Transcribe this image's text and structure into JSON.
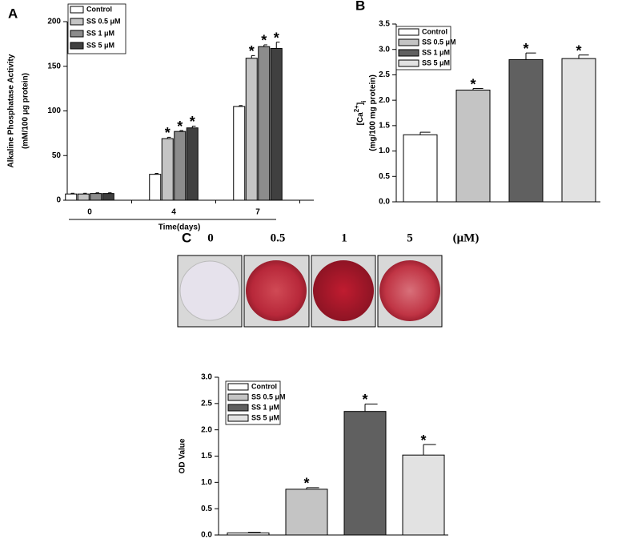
{
  "chart_data": [
    {
      "type": "grouped_bar",
      "panel_label": "A",
      "ylabel": [
        "Alkaline Phosphatase Activity",
        "(mM/100 μg protein)"
      ],
      "xlabel": "Time(days)",
      "categories": [
        "0",
        "4",
        "7"
      ],
      "series": [
        {
          "name": "Control",
          "color": "#ffffff",
          "values": [
            7,
            29,
            105
          ],
          "errors": [
            0.8,
            1,
            1
          ],
          "sig_labels": [
            null,
            null,
            null
          ]
        },
        {
          "name": "SS 0.5 μM",
          "color": "#c4c4c4",
          "values": [
            7,
            69,
            159
          ],
          "errors": [
            0.8,
            1.5,
            3
          ],
          "sig_labels": [
            null,
            "*",
            "*"
          ]
        },
        {
          "name": "SS 1 μM",
          "color": "#8c8c8c",
          "values": [
            7.5,
            77,
            172
          ],
          "errors": [
            0.8,
            1,
            2
          ],
          "sig_labels": [
            null,
            "*",
            "*"
          ]
        },
        {
          "name": "SS 5 μM",
          "color": "#404040",
          "values": [
            7.5,
            81,
            170
          ],
          "errors": [
            0.8,
            2,
            7
          ],
          "sig_labels": [
            null,
            "*",
            "*"
          ]
        }
      ],
      "ylim": [
        0,
        200
      ],
      "yticks": [
        0,
        50,
        100,
        150,
        200
      ]
    },
    {
      "type": "bar",
      "panel_label": "B",
      "ylabel": [
        "[Ca",
        "2+",
        "]",
        "i"
      ],
      "ylabel2": "(mg/100 mg protein)",
      "legend": [
        "Control",
        "SS 0.5 μM",
        "SS 1 μM",
        "SS 5 μM"
      ],
      "colors": [
        "#ffffff",
        "#c4c4c4",
        "#606060",
        "#e2e2e2"
      ],
      "values": [
        1.32,
        2.2,
        2.8,
        2.82
      ],
      "errors": [
        0.05,
        0.03,
        0.13,
        0.07
      ],
      "sig_labels": [
        null,
        "*",
        "*",
        "*"
      ],
      "ylim": [
        0,
        3.5
      ],
      "yticks": [
        {
          "value": 0,
          "label": "0.0"
        },
        {
          "value": 0.5,
          "label": "0.5"
        },
        {
          "value": 1,
          "label": "1.0"
        },
        {
          "value": 1.5,
          "label": "1.5"
        },
        {
          "value": 2,
          "label": "2.0"
        },
        {
          "value": 2.5,
          "label": "2.5"
        },
        {
          "value": 3,
          "label": "3.0"
        },
        {
          "value": 3.5,
          "label": "3.5"
        }
      ]
    },
    {
      "type": "bar",
      "panel_label": "C",
      "plate_labels": [
        "0",
        "0.5",
        "1",
        "5"
      ],
      "plate_unit": "(μM)",
      "ylabel": [
        "OD Value"
      ],
      "legend": [
        "Control",
        "SS 0.5 μM",
        "SS 1 μM",
        "SS 5 μM"
      ],
      "colors": [
        "#ffffff",
        "#c4c4c4",
        "#606060",
        "#e2e2e2"
      ],
      "values": [
        0.04,
        0.87,
        2.35,
        1.52
      ],
      "errors": [
        0.01,
        0.03,
        0.14,
        0.2
      ],
      "sig_labels": [
        null,
        "*",
        "*",
        "*"
      ],
      "ylim": [
        0,
        3
      ],
      "yticks": [
        {
          "value": 0,
          "label": "0.0"
        },
        {
          "value": 0.5,
          "label": "0.5"
        },
        {
          "value": 1,
          "label": "1.0"
        },
        {
          "value": 1.5,
          "label": "1.5"
        },
        {
          "value": 2,
          "label": "2.0"
        },
        {
          "value": 2.5,
          "label": "2.5"
        },
        {
          "value": 3,
          "label": "3.0"
        }
      ]
    }
  ]
}
